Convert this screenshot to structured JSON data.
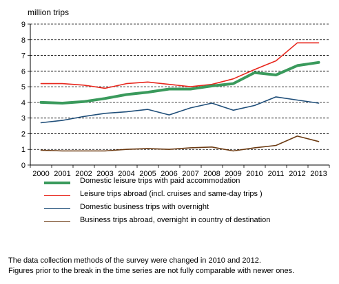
{
  "chart_data": {
    "type": "line",
    "ylabel": "million trips",
    "ylim": [
      0,
      9
    ],
    "yticks": [
      0,
      1,
      2,
      3,
      4,
      5,
      6,
      7,
      8,
      9
    ],
    "grid": "horizontal dashed",
    "categories": [
      "2000",
      "2001",
      "2002",
      "2003",
      "2004",
      "2005",
      "2006",
      "2007",
      "2008",
      "2009",
      "2010",
      "2011",
      "2012",
      "2013"
    ],
    "legend_position": "bottom",
    "series": [
      {
        "name": "Domestic leisure trips with paid accommodation",
        "color": "#3a9a5c",
        "width": 4,
        "values": [
          4.0,
          3.95,
          4.05,
          4.25,
          4.5,
          4.65,
          4.85,
          4.85,
          5.05,
          5.2,
          5.9,
          5.75,
          6.35,
          6.55
        ]
      },
      {
        "name": "Leisure trips abroad (incl. cruises and same-day trips )",
        "color": "#e8261c",
        "width": 1.6,
        "values": [
          5.2,
          5.2,
          5.1,
          4.9,
          5.2,
          5.3,
          5.15,
          5.0,
          5.15,
          5.5,
          6.1,
          6.65,
          7.8,
          7.8
        ]
      },
      {
        "name": "Domestic business trips with overnight",
        "color": "#1f4e79",
        "width": 1.6,
        "values": [
          2.7,
          2.85,
          3.1,
          3.3,
          3.4,
          3.55,
          3.2,
          3.65,
          3.95,
          3.5,
          3.8,
          4.35,
          4.15,
          3.95
        ]
      },
      {
        "name": "Business trips abroad, overnight in country of destination",
        "color": "#6b3a12",
        "width": 1.6,
        "values": [
          0.95,
          0.9,
          0.9,
          0.9,
          1.0,
          1.05,
          1.0,
          1.1,
          1.15,
          0.9,
          1.1,
          1.25,
          1.85,
          1.5
        ]
      }
    ]
  },
  "notes": [
    "The data collection methods of the survey were changed  in  2010 and 2012.",
    "Figures prior to the break in the time series are not fully comparable with newer ones."
  ]
}
